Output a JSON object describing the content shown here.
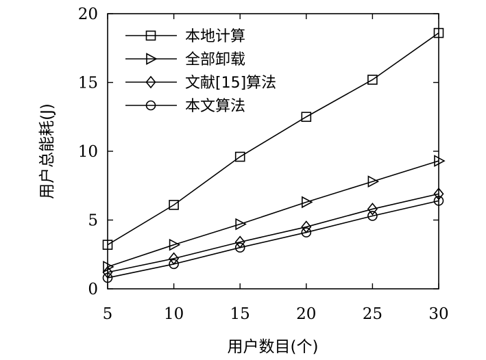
{
  "chart_data": {
    "type": "line",
    "xlabel": "用户数目(个)",
    "ylabel": "用户总能耗(J)",
    "x": [
      5,
      10,
      15,
      20,
      25,
      30
    ],
    "xlim": [
      5,
      30
    ],
    "ylim": [
      0,
      20
    ],
    "xticks": [
      5,
      10,
      15,
      20,
      25,
      30
    ],
    "yticks": [
      0,
      5,
      10,
      15,
      20
    ],
    "grid": false,
    "legend_position": "top-left",
    "series": [
      {
        "name": "本地计算",
        "marker": "square",
        "values": [
          3.2,
          6.1,
          9.6,
          12.5,
          15.2,
          18.6
        ]
      },
      {
        "name": "全部卸载",
        "marker": "triangle-right",
        "values": [
          1.6,
          3.2,
          4.7,
          6.3,
          7.8,
          9.3
        ]
      },
      {
        "name": "文献[15]算法",
        "marker": "diamond",
        "values": [
          1.2,
          2.2,
          3.4,
          4.5,
          5.8,
          6.9
        ]
      },
      {
        "name": "本文算法",
        "marker": "circle",
        "values": [
          0.8,
          1.8,
          3.0,
          4.1,
          5.3,
          6.4
        ]
      }
    ]
  }
}
